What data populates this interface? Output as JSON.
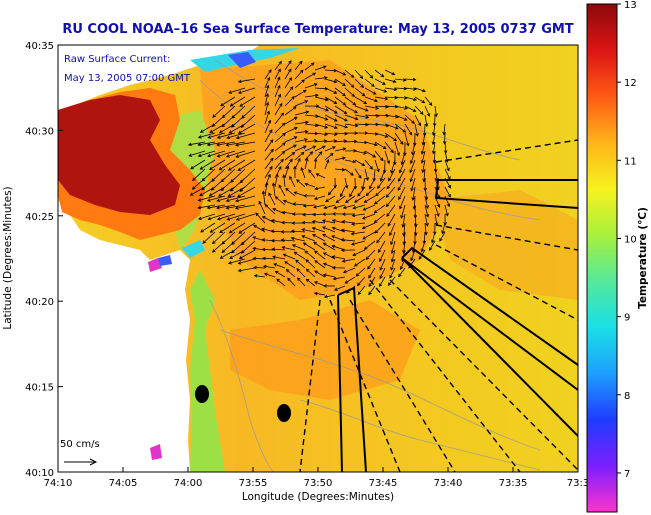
{
  "title": "RU COOL  NOAA–16  Sea Surface Temperature:  May 13, 2005 0737 GMT",
  "inset": {
    "line1": "Raw Surface Current:",
    "line2": "May 13, 2005 07:00 GMT"
  },
  "axes": {
    "xlabel": "Longitude (Degrees:Minutes)",
    "ylabel": "Latitude (Degrees:Minutes)",
    "xticks": [
      "74:10",
      "74:05",
      "74:00",
      "73:55",
      "73:50",
      "73:45",
      "73:40",
      "73:35",
      "73:3"
    ],
    "yticks": [
      "40:35",
      "40:30",
      "40:25",
      "40:20",
      "40:15",
      "40:10"
    ]
  },
  "scale_arrow": {
    "label": "50 cm/s"
  },
  "colorbar": {
    "label": "Temperature (°C)",
    "ticks": [
      "13",
      "12",
      "11",
      "10",
      "9",
      "8",
      "7"
    ],
    "vmin": 6.5,
    "vmax": 13,
    "colors": [
      "#ff33cc",
      "#7a1fff",
      "#1e3cff",
      "#1ea0ff",
      "#19e0e6",
      "#55e89a",
      "#a8f03c",
      "#f7f21e",
      "#ffb419",
      "#ff5a14",
      "#dc1414",
      "#8c0a0a"
    ]
  },
  "map_colors": {
    "land_white": "#ffffff",
    "warm_red": "#b0140e",
    "bay_orange": "#ff7a10",
    "sea_yellow": "#f2d31f",
    "sea_orange": "#ff9a1a",
    "shelf_green": "#9ce045",
    "cool_cyan": "#35d6e6",
    "cloud_blue": "#3a5bff",
    "magenta": "#e035c8"
  }
}
